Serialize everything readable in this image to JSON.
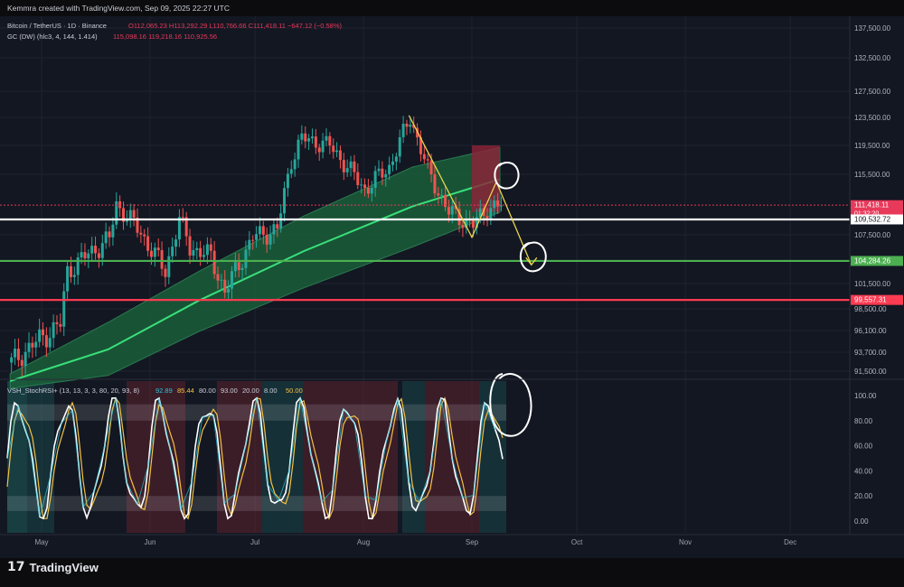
{
  "header": {
    "created_by": "Kemmra created with TradingView.com, Sep 09, 2025 22:27 UTC"
  },
  "legend": {
    "symbol": "Bitcoin / TetherUS · 1D · Binance",
    "ohlc": "O112,065.23  H113,292.29  L110,766.66  C111,418.11  −647.12 (−0.58%)",
    "indicator": "GC (DW) (hlc3, 4, 144, 1.414)",
    "indicator_values": "115,098.16  119,218.16  110,925.56"
  },
  "oscillator_legend": {
    "name": "VSH_StochRSI+ (13, 13, 3, 3, 80, 20, 93, 8)",
    "values": [
      "92.89",
      "85.44",
      "80.00",
      "93.00",
      "20.00",
      "8.00",
      "50.00"
    ],
    "value_colors": [
      "#26c6da",
      "#f5c242",
      "#c9ccd6",
      "#c9ccd6",
      "#c9ccd6",
      "#c9ccd6",
      "#f5c242"
    ]
  },
  "branding": {
    "logo_mark": "17",
    "logo_text": "TradingView"
  },
  "chart_data": {
    "type": "line",
    "price_axis": {
      "ticks": [
        137500,
        132500,
        127500,
        123500,
        119500,
        115500,
        107500,
        101500,
        98500,
        96100,
        93700,
        91500
      ],
      "tick_labels": [
        "137,500.00",
        "132,500.00",
        "127,500.00",
        "123,500.00",
        "119,500.00",
        "115,500.00",
        "107,500.00",
        "101,500.00",
        "98,500.00",
        "96,100.00",
        "93,700.00",
        "91,500.00"
      ]
    },
    "osc_axis": {
      "ticks": [
        100,
        80,
        60,
        40,
        20,
        0
      ],
      "tick_labels": [
        "100.00",
        "80.00",
        "60.00",
        "40.00",
        "20.00",
        "0.00"
      ]
    },
    "time_axis": {
      "labels": [
        "May",
        "Jun",
        "Jul",
        "Aug",
        "Sep",
        "Oct",
        "Nov",
        "Dec"
      ]
    },
    "horizontal_levels": [
      {
        "value": 111418.11,
        "label": "111,418.11",
        "sublabel": "01:32:20",
        "color": "#e8395a",
        "style": "dotted"
      },
      {
        "value": 109532.72,
        "label": "109,532.72",
        "color": "#ffffff",
        "style": "solid"
      },
      {
        "value": 104284.26,
        "label": "104,284.26",
        "color": "#4caf50",
        "style": "solid"
      },
      {
        "value": 99557.31,
        "label": "99,557.31",
        "color": "#ff3b52",
        "style": "solid"
      }
    ],
    "close_series_approx": [
      [
        "2025-04-22",
        92500
      ],
      [
        "2025-04-29",
        94800
      ],
      [
        "2025-05-06",
        96800
      ],
      [
        "2025-05-08",
        103000
      ],
      [
        "2025-05-12",
        104500
      ],
      [
        "2025-05-20",
        107000
      ],
      [
        "2025-05-22",
        111500
      ],
      [
        "2025-05-27",
        109000
      ],
      [
        "2025-06-05",
        103000
      ],
      [
        "2025-06-09",
        109500
      ],
      [
        "2025-06-12",
        106000
      ],
      [
        "2025-06-18",
        104800
      ],
      [
        "2025-06-22",
        100500
      ],
      [
        "2025-06-30",
        107200
      ],
      [
        "2025-07-07",
        108200
      ],
      [
        "2025-07-11",
        117500
      ],
      [
        "2025-07-14",
        120500
      ],
      [
        "2025-07-22",
        119500
      ],
      [
        "2025-08-01",
        113500
      ],
      [
        "2025-08-08",
        116500
      ],
      [
        "2025-08-14",
        123500
      ],
      [
        "2025-08-19",
        116000
      ],
      [
        "2025-08-25",
        110500
      ],
      [
        "2025-09-01",
        108800
      ],
      [
        "2025-09-05",
        111000
      ],
      [
        "2025-09-09",
        111418
      ]
    ],
    "band": {
      "lower_approx": [
        [
          "2025-04-22",
          89500
        ],
        [
          "2025-05-20",
          91000
        ],
        [
          "2025-06-15",
          96000
        ],
        [
          "2025-07-15",
          101000
        ],
        [
          "2025-08-15",
          106000
        ],
        [
          "2025-09-09",
          110500
        ]
      ],
      "upper_approx": [
        [
          "2025-04-22",
          91200
        ],
        [
          "2025-05-20",
          97000
        ],
        [
          "2025-06-15",
          103000
        ],
        [
          "2025-07-15",
          110000
        ],
        [
          "2025-08-15",
          116500
        ],
        [
          "2025-09-09",
          119200
        ]
      ]
    },
    "drawings": [
      {
        "type": "path",
        "color": "#e8d44d",
        "points": [
          [
            "2025-08-14",
            123800
          ],
          [
            "2025-09-01",
            107200
          ],
          [
            "2025-09-08",
            114500
          ],
          [
            "2025-09-18",
            103800
          ]
        ]
      }
    ]
  }
}
